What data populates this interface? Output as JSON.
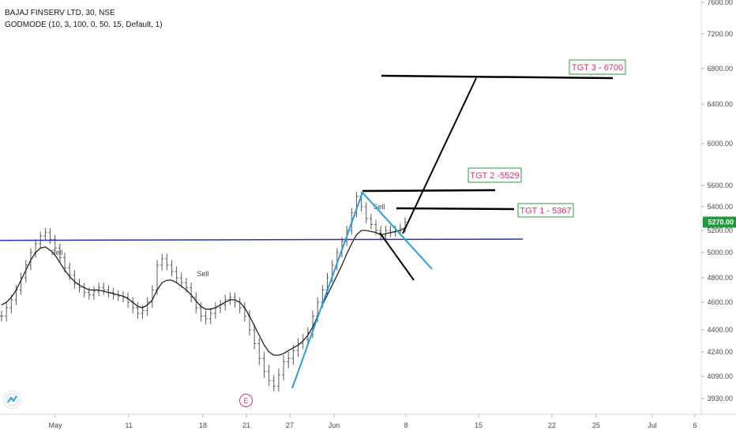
{
  "legend": {
    "symbol_line": "BAJAJ FINSERV LTD, 30, NSE",
    "indicator_line": "GODMODE (10, 3, 100, 0, 50, 15, Default, 1)"
  },
  "event_marker": "E",
  "logo_icon": "tradingview-cloud-icon",
  "chart_data": {
    "type": "line",
    "price_axis": {
      "ticks": [
        "7600.00",
        "7200.00",
        "6800.00",
        "6400.00",
        "6000.00",
        "5600.00",
        "5400.00",
        "5200.00",
        "5000.00",
        "4800.00",
        "4600.00",
        "4400.00",
        "4240.00",
        "4090.00",
        "3930.00"
      ],
      "tick_values": [
        7600,
        7200,
        6800,
        6400,
        6000,
        5600,
        5400,
        5200,
        5000,
        4800,
        4600,
        4400,
        4240,
        4090,
        3930
      ],
      "current_price_label": "5270.00",
      "current_price": 5270,
      "current_price_color": "#1e9c3c"
    },
    "time_axis": {
      "labels": [
        "May",
        "11",
        "18",
        "21",
        "27",
        "Jun",
        "8",
        "15",
        "22",
        "25",
        "Jul",
        "6"
      ]
    },
    "support_line": {
      "price": 5110,
      "color": "#2a2fb5"
    },
    "channel_color": "#2a9de0",
    "annotation_color": "#000000",
    "targets": [
      {
        "label": "TGT 1 - 5367",
        "price": 5367
      },
      {
        "label": "TGT 2 -5529",
        "price": 5529
      },
      {
        "label": "TGT 3 - 6700",
        "price": 6700
      }
    ],
    "signals": [
      "Sell",
      "Sell",
      "Sell"
    ],
    "price_series": [
      4500,
      4560,
      4620,
      4700,
      4800,
      4900,
      5000,
      5080,
      5150,
      5180,
      5120,
      5040,
      4960,
      4880,
      4820,
      4750,
      4720,
      4680,
      4660,
      4690,
      4720,
      4700,
      4680,
      4660,
      4650,
      4640,
      4600,
      4560,
      4520,
      4540,
      4600,
      4700,
      4900,
      4950,
      4900,
      4850,
      4800,
      4760,
      4720,
      4640,
      4560,
      4500,
      4480,
      4520,
      4560,
      4580,
      4620,
      4640,
      4600,
      4560,
      4500,
      4400,
      4300,
      4200,
      4120,
      4060,
      4020,
      4100,
      4180,
      4200,
      4250,
      4300,
      4330,
      4380,
      4500,
      4600,
      4700,
      4800,
      4900,
      5000,
      5100,
      5200,
      5350,
      5500,
      5400,
      5300,
      5250,
      5200,
      5150,
      5200,
      5180,
      5200,
      5220,
      5270
    ],
    "average_series": [
      4580,
      4600,
      4640,
      4700,
      4780,
      4860,
      4940,
      5000,
      5040,
      5050,
      5020,
      4980,
      4920,
      4860,
      4810,
      4770,
      4740,
      4720,
      4700,
      4700,
      4700,
      4690,
      4680,
      4670,
      4660,
      4650,
      4630,
      4600,
      4570,
      4560,
      4580,
      4620,
      4700,
      4760,
      4780,
      4780,
      4760,
      4730,
      4700,
      4660,
      4610,
      4570,
      4550,
      4550,
      4560,
      4580,
      4600,
      4620,
      4620,
      4600,
      4560,
      4500,
      4430,
      4360,
      4290,
      4240,
      4220,
      4220,
      4230,
      4250,
      4270,
      4290,
      4320,
      4360,
      4420,
      4500,
      4580,
      4660,
      4740,
      4820,
      4900,
      4990,
      5080,
      5160,
      5200,
      5200,
      5190,
      5180,
      5160,
      5170,
      5180,
      5190,
      5200,
      5220
    ]
  }
}
